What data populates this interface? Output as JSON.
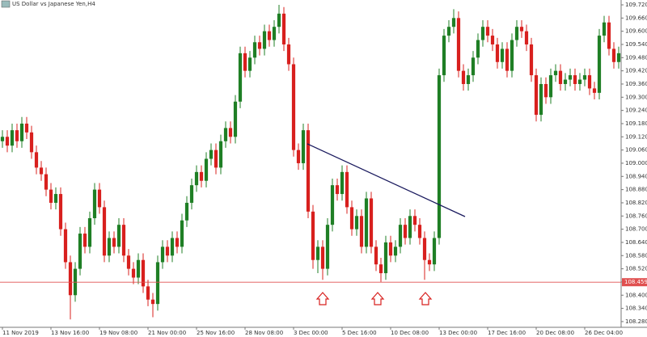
{
  "chart_data": {
    "type": "candlestick",
    "title": "US Dollar vs Japanese Yen,H4",
    "categories": [
      "11 Nov 2019",
      null,
      null,
      null,
      null,
      null,
      null,
      null,
      null,
      null,
      "13 Nov 16:00",
      null,
      null,
      null,
      null,
      null,
      null,
      null,
      null,
      null,
      "19 Nov 08:00",
      null,
      null,
      null,
      null,
      null,
      null,
      null,
      null,
      null,
      "21 Nov 00:00",
      null,
      null,
      null,
      null,
      null,
      null,
      null,
      null,
      null,
      "25 Nov 16:00",
      null,
      null,
      null,
      null,
      null,
      null,
      null,
      null,
      null,
      "28 Nov 08:00",
      null,
      null,
      null,
      null,
      null,
      null,
      null,
      null,
      null,
      "3 Dec 00:00",
      null,
      null,
      null,
      null,
      null,
      null,
      null,
      null,
      null,
      "5 Dec 16:00",
      null,
      null,
      null,
      null,
      null,
      null,
      null,
      null,
      null,
      "10 Dec 08:00",
      null,
      null,
      null,
      null,
      null,
      null,
      null,
      null,
      null,
      "13 Dec 00:00",
      null,
      null,
      null,
      null,
      null,
      null,
      null,
      null,
      null,
      "17 Dec 16:00",
      null,
      null,
      null,
      null,
      null,
      null,
      null,
      null,
      null,
      "20 Dec 08:00",
      null,
      null,
      null,
      null,
      null,
      null,
      null,
      null,
      null,
      "26 Dec 04:00",
      null,
      null,
      null,
      null,
      null,
      null,
      null
    ],
    "open": [
      109.1,
      109.12,
      109.08,
      109.15,
      109.1,
      109.18,
      109.14,
      109.05,
      108.98,
      108.95,
      108.88,
      108.82,
      108.86,
      108.7,
      108.55,
      108.4,
      108.52,
      108.68,
      108.62,
      108.75,
      108.88,
      108.8,
      108.58,
      108.66,
      108.62,
      108.72,
      108.58,
      108.52,
      108.48,
      108.56,
      108.44,
      108.38,
      108.36,
      108.55,
      108.62,
      108.58,
      108.66,
      108.62,
      108.74,
      108.82,
      108.9,
      108.96,
      108.92,
      109.02,
      109.06,
      108.98,
      109.1,
      109.16,
      109.12,
      109.28,
      109.5,
      109.42,
      109.48,
      109.55,
      109.52,
      109.6,
      109.56,
      109.62,
      109.68,
      109.54,
      109.45,
      109.06,
      109.0,
      109.15,
      108.78,
      108.56,
      108.62,
      108.52,
      108.72,
      108.9,
      108.86,
      108.96,
      108.8,
      108.7,
      108.76,
      108.62,
      108.84,
      108.62,
      108.54,
      108.5,
      108.64,
      108.58,
      108.62,
      108.72,
      108.66,
      108.76,
      108.72,
      108.66,
      108.56,
      108.54,
      108.66,
      109.4,
      109.58,
      109.62,
      109.66,
      109.42,
      109.36,
      109.4,
      109.48,
      109.56,
      109.62,
      109.58,
      109.54,
      109.46,
      109.52,
      109.42,
      109.56,
      109.62,
      109.6,
      109.54,
      109.4,
      109.22,
      109.36,
      109.3,
      109.4,
      109.42,
      109.36,
      109.38,
      109.4,
      109.36,
      109.38,
      109.4,
      109.34,
      109.32,
      109.58,
      109.64,
      109.52,
      109.46
    ],
    "high": [
      109.15,
      109.15,
      109.18,
      109.18,
      109.21,
      109.21,
      109.17,
      109.08,
      109.01,
      108.98,
      108.91,
      108.89,
      108.89,
      108.73,
      108.58,
      108.55,
      108.71,
      108.71,
      108.78,
      108.91,
      108.91,
      108.83,
      108.69,
      108.69,
      108.75,
      108.75,
      108.61,
      108.55,
      108.59,
      108.59,
      108.47,
      108.41,
      108.58,
      108.65,
      108.65,
      108.69,
      108.69,
      108.77,
      108.85,
      108.93,
      108.99,
      108.99,
      109.05,
      109.09,
      109.09,
      109.13,
      109.19,
      109.19,
      109.31,
      109.53,
      109.53,
      109.51,
      109.58,
      109.58,
      109.63,
      109.63,
      109.65,
      109.72,
      109.71,
      109.57,
      109.48,
      109.09,
      109.18,
      109.18,
      108.81,
      108.65,
      108.65,
      108.75,
      108.93,
      108.93,
      108.99,
      108.99,
      108.83,
      108.79,
      108.79,
      108.87,
      108.87,
      108.65,
      108.57,
      108.67,
      108.67,
      108.65,
      108.75,
      108.75,
      108.79,
      108.79,
      108.75,
      108.69,
      108.59,
      108.69,
      109.43,
      109.61,
      109.65,
      109.7,
      109.69,
      109.45,
      109.43,
      109.51,
      109.59,
      109.65,
      109.65,
      109.61,
      109.57,
      109.55,
      109.55,
      109.59,
      109.65,
      109.65,
      109.63,
      109.57,
      109.43,
      109.39,
      109.39,
      109.43,
      109.45,
      109.45,
      109.41,
      109.43,
      109.43,
      109.41,
      109.43,
      109.43,
      109.37,
      109.61,
      109.67,
      109.67,
      109.55,
      109.53
    ],
    "low": [
      109.07,
      109.05,
      109.05,
      109.07,
      109.07,
      109.11,
      109.02,
      108.95,
      108.92,
      108.85,
      108.79,
      108.79,
      108.67,
      108.52,
      108.29,
      108.37,
      108.49,
      108.59,
      108.59,
      108.72,
      108.77,
      108.55,
      108.55,
      108.59,
      108.59,
      108.55,
      108.49,
      108.45,
      108.45,
      108.41,
      108.35,
      108.3,
      108.33,
      108.52,
      108.55,
      108.55,
      108.59,
      108.59,
      108.71,
      108.79,
      108.87,
      108.89,
      108.89,
      108.99,
      108.95,
      108.95,
      109.07,
      109.09,
      109.09,
      109.25,
      109.39,
      109.39,
      109.45,
      109.49,
      109.49,
      109.53,
      109.53,
      109.59,
      109.51,
      109.42,
      109.03,
      108.97,
      108.97,
      108.75,
      108.52,
      108.5,
      108.47,
      108.49,
      108.69,
      108.83,
      108.83,
      108.77,
      108.67,
      108.67,
      108.59,
      108.59,
      108.59,
      108.51,
      108.46,
      108.47,
      108.55,
      108.55,
      108.59,
      108.63,
      108.63,
      108.69,
      108.63,
      108.47,
      108.51,
      108.51,
      108.63,
      109.37,
      109.55,
      109.59,
      109.39,
      109.33,
      109.33,
      109.37,
      109.45,
      109.53,
      109.55,
      109.51,
      109.43,
      109.43,
      109.39,
      109.39,
      109.53,
      109.57,
      109.51,
      109.37,
      109.19,
      109.19,
      109.27,
      109.27,
      109.37,
      109.33,
      109.33,
      109.35,
      109.33,
      109.33,
      109.35,
      109.31,
      109.29,
      109.29,
      109.55,
      109.49,
      109.43,
      109.43
    ],
    "close": [
      109.12,
      109.08,
      109.15,
      109.1,
      109.18,
      109.14,
      109.05,
      108.98,
      108.95,
      108.88,
      108.82,
      108.86,
      108.7,
      108.55,
      108.4,
      108.52,
      108.68,
      108.62,
      108.75,
      108.88,
      108.8,
      108.58,
      108.66,
      108.62,
      108.72,
      108.58,
      108.52,
      108.48,
      108.56,
      108.44,
      108.38,
      108.36,
      108.55,
      108.62,
      108.58,
      108.66,
      108.62,
      108.74,
      108.82,
      108.9,
      108.96,
      108.92,
      109.02,
      109.06,
      108.98,
      109.1,
      109.16,
      109.12,
      109.28,
      109.5,
      109.42,
      109.48,
      109.55,
      109.52,
      109.6,
      109.56,
      109.62,
      109.68,
      109.54,
      109.45,
      109.06,
      109.0,
      109.15,
      108.78,
      108.56,
      108.62,
      108.52,
      108.72,
      108.9,
      108.86,
      108.96,
      108.8,
      108.7,
      108.76,
      108.62,
      108.84,
      108.62,
      108.54,
      108.5,
      108.64,
      108.58,
      108.62,
      108.72,
      108.66,
      108.76,
      108.72,
      108.66,
      108.56,
      108.54,
      108.66,
      109.4,
      109.58,
      109.62,
      109.66,
      109.42,
      109.36,
      109.4,
      109.48,
      109.56,
      109.62,
      109.58,
      109.54,
      109.46,
      109.52,
      109.42,
      109.56,
      109.62,
      109.6,
      109.54,
      109.4,
      109.22,
      109.36,
      109.3,
      109.4,
      109.42,
      109.36,
      109.38,
      109.4,
      109.36,
      109.38,
      109.4,
      109.34,
      109.32,
      109.58,
      109.64,
      109.52,
      109.46,
      109.5
    ],
    "up_color": "#1f7f25",
    "down_color": "#d8201e",
    "ylim": [
      108.254,
      109.742
    ],
    "yticks": [
      {
        "value": 109.72,
        "label": "109.720"
      },
      {
        "value": 109.66,
        "label": "109.660"
      },
      {
        "value": 109.6,
        "label": "109.600"
      },
      {
        "value": 109.54,
        "label": "109.540"
      },
      {
        "value": 109.48,
        "label": "109.480"
      },
      {
        "value": 109.42,
        "label": "109.420"
      },
      {
        "value": 109.36,
        "label": "109.360"
      },
      {
        "value": 109.3,
        "label": "109.300"
      },
      {
        "value": 109.24,
        "label": "109.240"
      },
      {
        "value": 109.18,
        "label": "109.180"
      },
      {
        "value": 109.12,
        "label": "109.120"
      },
      {
        "value": 109.06,
        "label": "109.060"
      },
      {
        "value": 109.0,
        "label": "109.000"
      },
      {
        "value": 108.94,
        "label": "108.940"
      },
      {
        "value": 108.88,
        "label": "108.880"
      },
      {
        "value": 108.82,
        "label": "108.820"
      },
      {
        "value": 108.76,
        "label": "108.760"
      },
      {
        "value": 108.7,
        "label": "108.700"
      },
      {
        "value": 108.64,
        "label": "108.640"
      },
      {
        "value": 108.58,
        "label": "108.580"
      },
      {
        "value": 108.52,
        "label": "108.520"
      },
      {
        "value": 108.46,
        "label": "108.460"
      },
      {
        "value": 108.4,
        "label": "108.400"
      },
      {
        "value": 108.34,
        "label": "108.340"
      },
      {
        "value": 108.28,
        "label": "108.280"
      }
    ],
    "price_line": 108.459,
    "price_line_color": "#e05050"
  }
}
